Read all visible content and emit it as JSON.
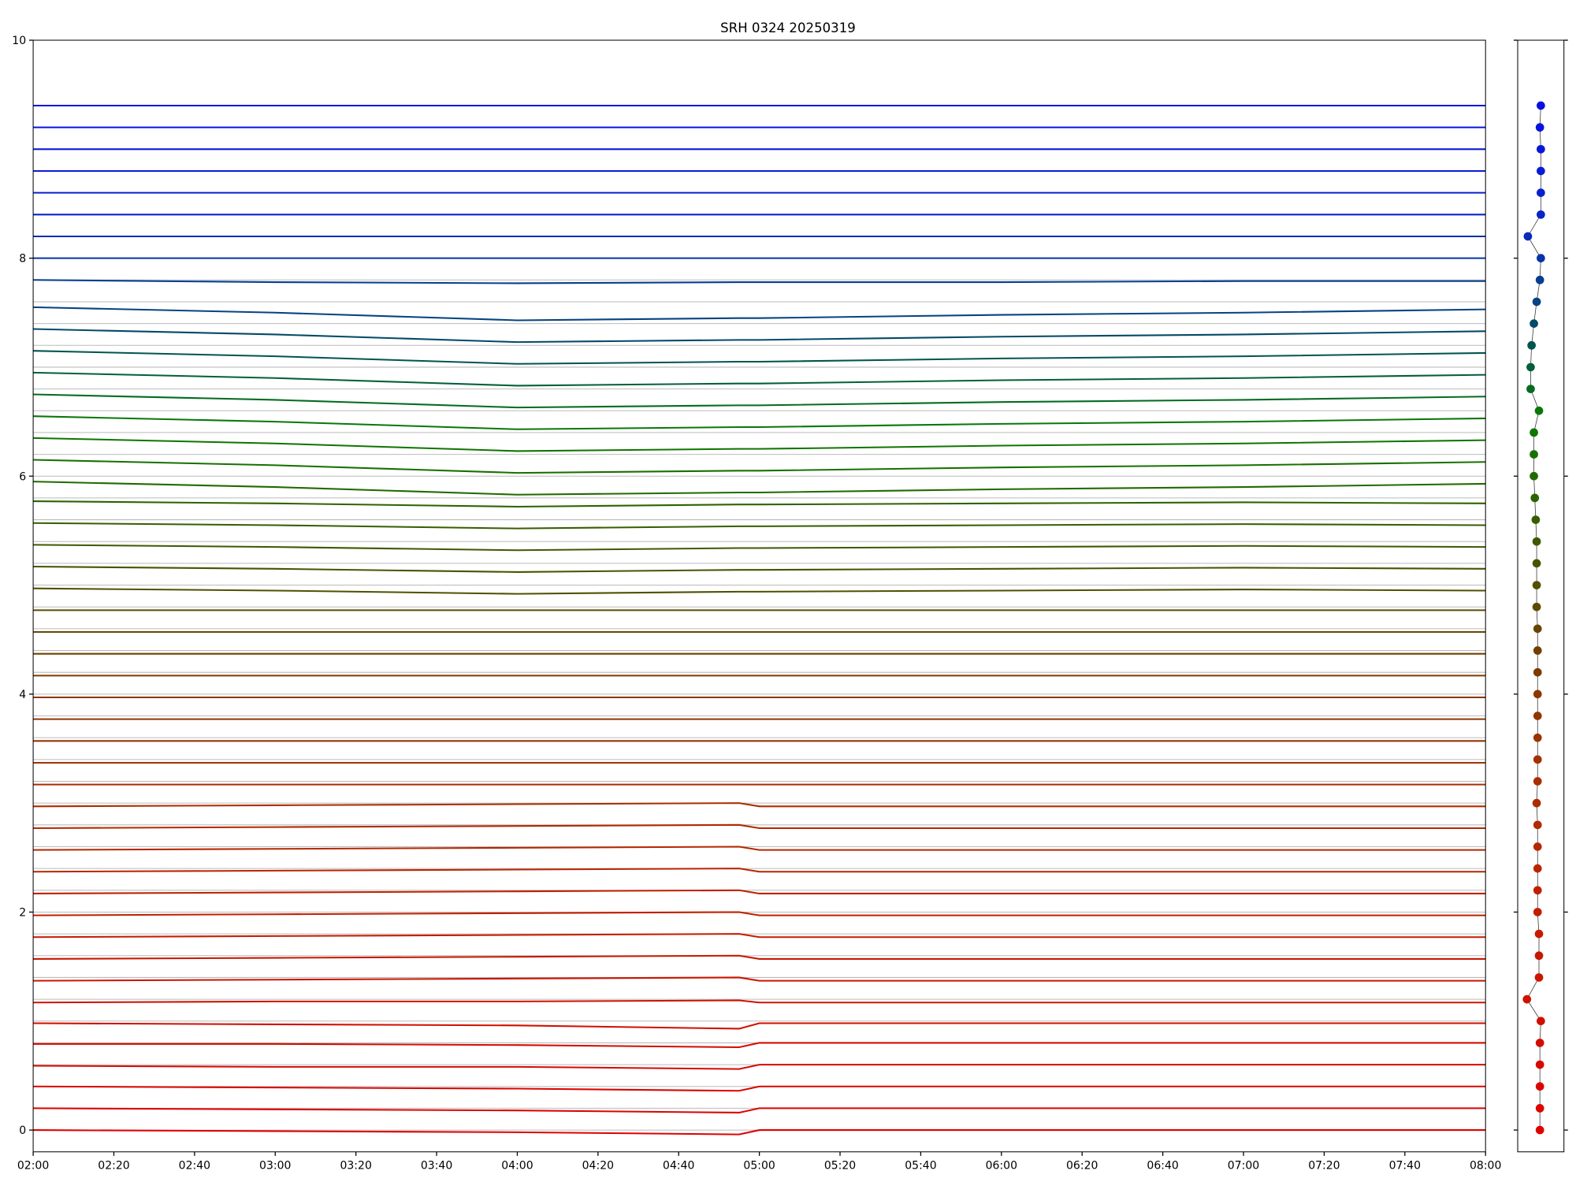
{
  "chart_data": [
    {
      "type": "line",
      "title": "SRH 0324 20250319",
      "x": [
        "02:00",
        "03:00",
        "04:00",
        "04:55",
        "05:00",
        "06:00",
        "07:00",
        "08:00"
      ],
      "xlim": [
        "02:00",
        "08:00"
      ],
      "xticks": [
        "02:00",
        "02:20",
        "02:40",
        "03:00",
        "03:20",
        "03:40",
        "04:00",
        "04:20",
        "04:40",
        "05:00",
        "05:20",
        "05:40",
        "06:00",
        "06:20",
        "06:40",
        "07:00",
        "07:20",
        "07:40",
        "08:00"
      ],
      "ylim": [
        -0.2,
        10
      ],
      "yticks": [
        0,
        2,
        4,
        6,
        8,
        10
      ],
      "series": [
        {
          "color": "#e00000",
          "values": [
            0,
            -0.01,
            -0.02,
            -0.04,
            0,
            0,
            0,
            0
          ]
        },
        {
          "color": "#dd0300",
          "values": [
            0.2,
            0.19,
            0.18,
            0.16,
            0.2,
            0.2,
            0.2,
            0.2
          ]
        },
        {
          "color": "#da0600",
          "values": [
            0.4,
            0.39,
            0.38,
            0.36,
            0.4,
            0.4,
            0.4,
            0.4
          ]
        },
        {
          "color": "#d70900",
          "values": [
            0.59,
            0.58,
            0.58,
            0.56,
            0.6,
            0.6,
            0.6,
            0.6
          ]
        },
        {
          "color": "#d40c00",
          "values": [
            0.79,
            0.79,
            0.78,
            0.76,
            0.8,
            0.8,
            0.8,
            0.8
          ]
        },
        {
          "color": "#d10f00",
          "values": [
            0.98,
            0.97,
            0.96,
            0.93,
            0.98,
            0.98,
            0.98,
            0.98
          ]
        },
        {
          "color": "#ce1200",
          "values": [
            1.17,
            1.18,
            1.18,
            1.19,
            1.17,
            1.17,
            1.17,
            1.17
          ]
        },
        {
          "color": "#cb1500",
          "values": [
            1.37,
            1.38,
            1.39,
            1.4,
            1.37,
            1.37,
            1.37,
            1.37
          ]
        },
        {
          "color": "#c81800",
          "values": [
            1.57,
            1.58,
            1.59,
            1.6,
            1.57,
            1.57,
            1.57,
            1.57
          ]
        },
        {
          "color": "#c51b00",
          "values": [
            1.77,
            1.78,
            1.79,
            1.8,
            1.77,
            1.77,
            1.77,
            1.77
          ]
        },
        {
          "color": "#c21e00",
          "values": [
            1.97,
            1.98,
            1.99,
            2.0,
            1.97,
            1.97,
            1.97,
            1.97
          ]
        },
        {
          "color": "#bf2100",
          "values": [
            2.17,
            2.18,
            2.19,
            2.2,
            2.17,
            2.17,
            2.17,
            2.17
          ]
        },
        {
          "color": "#bb2400",
          "values": [
            2.37,
            2.38,
            2.39,
            2.4,
            2.37,
            2.37,
            2.37,
            2.37
          ]
        },
        {
          "color": "#b62700",
          "values": [
            2.57,
            2.58,
            2.59,
            2.6,
            2.57,
            2.57,
            2.57,
            2.57
          ]
        },
        {
          "color": "#b12a00",
          "values": [
            2.77,
            2.78,
            2.79,
            2.8,
            2.77,
            2.77,
            2.77,
            2.77
          ]
        },
        {
          "color": "#ac2d00",
          "values": [
            2.97,
            2.98,
            2.99,
            3.0,
            2.97,
            2.97,
            2.97,
            2.97
          ]
        },
        {
          "color": "#a72f00",
          "values": [
            3.17,
            3.17,
            3.17,
            3.17,
            3.17,
            3.17,
            3.17,
            3.17
          ]
        },
        {
          "color": "#a23100",
          "values": [
            3.37,
            3.37,
            3.37,
            3.37,
            3.37,
            3.37,
            3.37,
            3.37
          ]
        },
        {
          "color": "#9a3300",
          "values": [
            3.57,
            3.57,
            3.57,
            3.57,
            3.57,
            3.57,
            3.57,
            3.57
          ]
        },
        {
          "color": "#923500",
          "values": [
            3.77,
            3.77,
            3.77,
            3.77,
            3.77,
            3.77,
            3.77,
            3.77
          ]
        },
        {
          "color": "#8a3700",
          "values": [
            3.97,
            3.97,
            3.97,
            3.97,
            3.97,
            3.97,
            3.97,
            3.97
          ]
        },
        {
          "color": "#7e3b00",
          "values": [
            4.17,
            4.17,
            4.17,
            4.17,
            4.17,
            4.17,
            4.17,
            4.17
          ]
        },
        {
          "color": "#723f00",
          "values": [
            4.37,
            4.37,
            4.37,
            4.37,
            4.37,
            4.37,
            4.37,
            4.37
          ]
        },
        {
          "color": "#664500",
          "values": [
            4.57,
            4.57,
            4.57,
            4.57,
            4.57,
            4.57,
            4.57,
            4.57
          ]
        },
        {
          "color": "#5a4b00",
          "values": [
            4.77,
            4.77,
            4.77,
            4.77,
            4.77,
            4.77,
            4.77,
            4.77
          ]
        },
        {
          "color": "#505000",
          "values": [
            4.97,
            4.95,
            4.92,
            4.94,
            4.94,
            4.95,
            4.96,
            4.95
          ]
        },
        {
          "color": "#485400",
          "values": [
            5.17,
            5.15,
            5.12,
            5.14,
            5.14,
            5.15,
            5.16,
            5.15
          ]
        },
        {
          "color": "#405800",
          "values": [
            5.37,
            5.35,
            5.32,
            5.34,
            5.34,
            5.35,
            5.36,
            5.35
          ]
        },
        {
          "color": "#365e00",
          "values": [
            5.57,
            5.55,
            5.52,
            5.54,
            5.54,
            5.55,
            5.56,
            5.55
          ]
        },
        {
          "color": "#2c6400",
          "values": [
            5.77,
            5.75,
            5.72,
            5.74,
            5.74,
            5.75,
            5.76,
            5.75
          ]
        },
        {
          "color": "#226a00",
          "values": [
            5.95,
            5.9,
            5.83,
            5.85,
            5.85,
            5.88,
            5.9,
            5.93
          ]
        },
        {
          "color": "#187000",
          "values": [
            6.15,
            6.1,
            6.03,
            6.05,
            6.05,
            6.08,
            6.1,
            6.13
          ]
        },
        {
          "color": "#107400",
          "values": [
            6.35,
            6.3,
            6.23,
            6.25,
            6.25,
            6.28,
            6.3,
            6.33
          ]
        },
        {
          "color": "#087808",
          "values": [
            6.55,
            6.5,
            6.43,
            6.45,
            6.45,
            6.48,
            6.5,
            6.53
          ]
        },
        {
          "color": "#046c20",
          "values": [
            6.75,
            6.7,
            6.63,
            6.65,
            6.65,
            6.68,
            6.7,
            6.73
          ]
        },
        {
          "color": "#036038",
          "values": [
            6.95,
            6.9,
            6.83,
            6.85,
            6.85,
            6.88,
            6.9,
            6.93
          ]
        },
        {
          "color": "#025450",
          "values": [
            7.15,
            7.1,
            7.03,
            7.05,
            7.05,
            7.08,
            7.1,
            7.13
          ]
        },
        {
          "color": "#034a68",
          "values": [
            7.35,
            7.3,
            7.23,
            7.25,
            7.25,
            7.28,
            7.3,
            7.33
          ]
        },
        {
          "color": "#054480",
          "values": [
            7.55,
            7.5,
            7.43,
            7.45,
            7.45,
            7.48,
            7.5,
            7.53
          ]
        },
        {
          "color": "#063e90",
          "values": [
            7.8,
            7.78,
            7.77,
            7.78,
            7.78,
            7.78,
            7.79,
            7.79
          ]
        },
        {
          "color": "#0734a8",
          "values": [
            8.0,
            8.0,
            8.0,
            8.0,
            8.0,
            8.0,
            8.0,
            8.0
          ]
        },
        {
          "color": "#082cb8",
          "values": [
            8.2,
            8.2,
            8.2,
            8.2,
            8.2,
            8.2,
            8.2,
            8.2
          ]
        },
        {
          "color": "#0824c8",
          "values": [
            8.4,
            8.4,
            8.4,
            8.4,
            8.4,
            8.4,
            8.4,
            8.4
          ]
        },
        {
          "color": "#0820d0",
          "values": [
            8.6,
            8.6,
            8.6,
            8.6,
            8.6,
            8.6,
            8.6,
            8.6
          ]
        },
        {
          "color": "#081cd4",
          "values": [
            8.8,
            8.8,
            8.8,
            8.8,
            8.8,
            8.8,
            8.8,
            8.8
          ]
        },
        {
          "color": "#0818d8",
          "values": [
            9.0,
            9.0,
            9.0,
            9.0,
            9.0,
            9.0,
            9.0,
            9.0
          ]
        },
        {
          "color": "#0814dc",
          "values": [
            9.2,
            9.2,
            9.2,
            9.2,
            9.2,
            9.2,
            9.2,
            9.2
          ]
        },
        {
          "color": "#0810e0",
          "values": [
            9.4,
            9.4,
            9.4,
            9.4,
            9.4,
            9.4,
            9.4,
            9.4
          ]
        }
      ]
    },
    {
      "type": "scatter",
      "x": [
        0.48,
        0.48,
        0.48,
        0.48,
        0.48,
        0.5,
        0.2,
        0.46,
        0.46,
        0.46,
        0.43,
        0.43,
        0.43,
        0.43,
        0.43,
        0.41,
        0.43,
        0.43,
        0.43,
        0.43,
        0.43,
        0.43,
        0.43,
        0.43,
        0.41,
        0.41,
        0.41,
        0.41,
        0.39,
        0.37,
        0.35,
        0.35,
        0.35,
        0.46,
        0.28,
        0.28,
        0.3,
        0.35,
        0.41,
        0.48,
        0.5,
        0.22,
        0.5,
        0.5,
        0.5,
        0.5,
        0.48,
        0.5
      ],
      "y": [
        0,
        0.2,
        0.4,
        0.6,
        0.8,
        1.0,
        1.2,
        1.4,
        1.6,
        1.8,
        2.0,
        2.2,
        2.4,
        2.6,
        2.8,
        3.0,
        3.2,
        3.4,
        3.6,
        3.8,
        4.0,
        4.2,
        4.4,
        4.6,
        4.8,
        5.0,
        5.2,
        5.4,
        5.6,
        5.8,
        6.0,
        6.2,
        6.4,
        6.6,
        6.8,
        7.0,
        7.2,
        7.4,
        7.6,
        7.8,
        8.0,
        8.2,
        8.4,
        8.6,
        8.8,
        9.0,
        9.2,
        9.4
      ],
      "colors": [
        "#e00000",
        "#dd0300",
        "#da0600",
        "#d70900",
        "#d40c00",
        "#d10f00",
        "#ce1200",
        "#cb1500",
        "#c81800",
        "#c51b00",
        "#c21e00",
        "#bf2100",
        "#bb2400",
        "#b62700",
        "#b12a00",
        "#ac2d00",
        "#a72f00",
        "#a23100",
        "#9a3300",
        "#923500",
        "#8a3700",
        "#7e3b00",
        "#723f00",
        "#664500",
        "#5a4b00",
        "#505000",
        "#485400",
        "#405800",
        "#365e00",
        "#2c6400",
        "#226a00",
        "#187000",
        "#107400",
        "#087808",
        "#046c20",
        "#036038",
        "#025450",
        "#034a68",
        "#054480",
        "#063e90",
        "#0734a8",
        "#082cb8",
        "#0824c8",
        "#0820d0",
        "#081cd4",
        "#0818d8",
        "#0814dc",
        "#0810e0"
      ],
      "xlim": [
        0,
        1
      ],
      "ylim": [
        -0.2,
        10
      ]
    }
  ]
}
